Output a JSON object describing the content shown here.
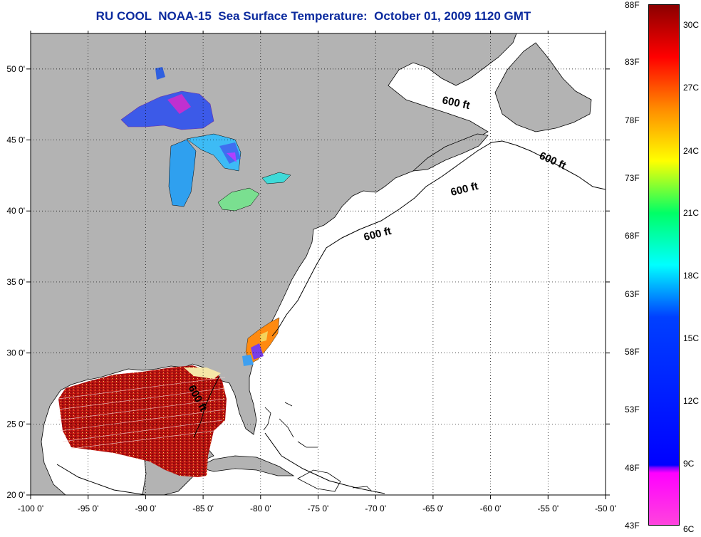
{
  "title": "RU COOL  NOAA-15  Sea Surface Temperature:  October 01, 2009 1120 GMT",
  "map": {
    "lon_ticks": [
      "-100 0'",
      "-95 0'",
      "-90 0'",
      "-85 0'",
      "-80 0'",
      "-75 0'",
      "-70 0'",
      "-65 0'",
      "-60 0'",
      "-55 0'",
      "-50 0'"
    ],
    "lat_ticks": [
      "50 0'",
      "45 0'",
      "40 0'",
      "35 0'",
      "30 0'",
      "25 0'",
      "20 0'"
    ],
    "lon_range": [
      -100,
      -50
    ],
    "lat_range": [
      20,
      52.5
    ],
    "contour_labels": [
      "600 ft",
      "600 ft",
      "600 ft",
      "600 ft",
      "600 ft"
    ],
    "colors": {
      "land": "#b3b3b3",
      "ocean": "#ffffff",
      "title": "#0b2a9e"
    }
  },
  "colorbar": {
    "fahrenheit": [
      "88F",
      "83F",
      "78F",
      "73F",
      "68F",
      "63F",
      "58F",
      "53F",
      "48F",
      "43F"
    ],
    "celsius": [
      "30C",
      "27C",
      "24C",
      "21C",
      "18C",
      "15C",
      "12C",
      "9C",
      "6C"
    ],
    "range_f": [
      43,
      88
    ],
    "stops": [
      "#8b0000",
      "#ff0000",
      "#ff8c00",
      "#ffff00",
      "#00ff66",
      "#00ffff",
      "#0040ff",
      "#0000ff",
      "#8000ff",
      "#ff00ff",
      "#ff44dd"
    ]
  }
}
